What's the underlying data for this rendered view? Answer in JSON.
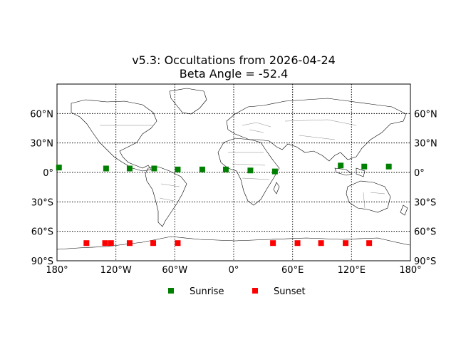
{
  "chart_data": {
    "type": "scatter",
    "title": "v5.3: Occultations from 2026-04-24",
    "subtitle": "Beta Angle = -52.4",
    "xlim": [
      -180,
      180
    ],
    "ylim": [
      -90,
      90
    ],
    "grid": true,
    "grid_style": "dotted",
    "x_ticks": [
      {
        "value": -180,
        "label": "180°"
      },
      {
        "value": -120,
        "label": "120°W"
      },
      {
        "value": -60,
        "label": "60°W"
      },
      {
        "value": 0,
        "label": "0°"
      },
      {
        "value": 60,
        "label": "60°E"
      },
      {
        "value": 120,
        "label": "120°E"
      },
      {
        "value": 180,
        "label": "180°"
      }
    ],
    "y_ticks": [
      {
        "value": 60,
        "label": "60°N"
      },
      {
        "value": 30,
        "label": "30°N"
      },
      {
        "value": 0,
        "label": "0°"
      },
      {
        "value": -30,
        "label": "30°S"
      },
      {
        "value": -60,
        "label": "60°S"
      },
      {
        "value": -90,
        "label": "90°S"
      }
    ],
    "legend_position": "bottom-center",
    "series": [
      {
        "name": "Sunrise",
        "color": "#008000",
        "marker": "square",
        "points": [
          {
            "lon": -178,
            "lat": 5
          },
          {
            "lon": -130,
            "lat": 4
          },
          {
            "lon": -106,
            "lat": 4
          },
          {
            "lon": -81,
            "lat": 4
          },
          {
            "lon": -57,
            "lat": 3
          },
          {
            "lon": -32,
            "lat": 3
          },
          {
            "lon": -8,
            "lat": 3
          },
          {
            "lon": 17,
            "lat": 2
          },
          {
            "lon": 42,
            "lat": 1
          },
          {
            "lon": 109,
            "lat": 7
          },
          {
            "lon": 133,
            "lat": 6
          },
          {
            "lon": 158,
            "lat": 6
          }
        ]
      },
      {
        "name": "Sunset",
        "color": "#ff0000",
        "marker": "square",
        "points": [
          {
            "lon": -150,
            "lat": -72
          },
          {
            "lon": -131,
            "lat": -72
          },
          {
            "lon": -125,
            "lat": -72
          },
          {
            "lon": -106,
            "lat": -72
          },
          {
            "lon": -82,
            "lat": -72
          },
          {
            "lon": -57,
            "lat": -72
          },
          {
            "lon": 40,
            "lat": -72
          },
          {
            "lon": 65,
            "lat": -72
          },
          {
            "lon": 89,
            "lat": -72
          },
          {
            "lon": 114,
            "lat": -72
          },
          {
            "lon": 138,
            "lat": -72
          }
        ]
      }
    ]
  }
}
